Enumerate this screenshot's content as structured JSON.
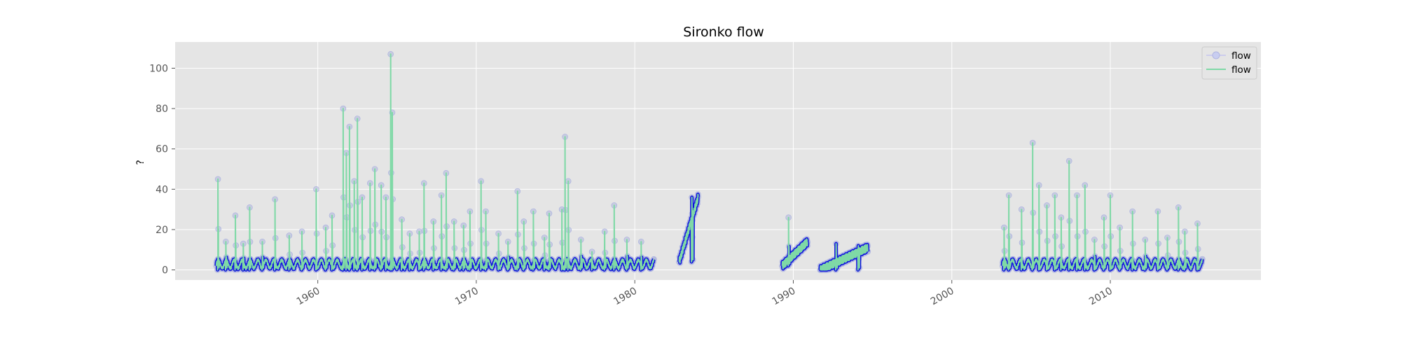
{
  "chart_data": {
    "type": "line",
    "title": "Sironko flow",
    "xlabel": "",
    "ylabel": "?",
    "x_range": [
      1951.0,
      2019.5
    ],
    "ylim": [
      -5,
      113
    ],
    "x_ticks": [
      1960,
      1970,
      1980,
      1990,
      2000,
      2010
    ],
    "x_tick_labels": [
      "1960",
      "1970",
      "1980",
      "1990",
      "2000",
      "2010"
    ],
    "y_ticks": [
      0,
      20,
      40,
      60,
      80,
      100
    ],
    "y_tick_labels": [
      "0",
      "20",
      "40",
      "60",
      "80",
      "100"
    ],
    "grid": true,
    "legend_position": "top-right",
    "background": "#e5e5e5",
    "series": [
      {
        "name": "flow",
        "style": "markers",
        "color": "#1010e0",
        "marker_color": "#aeb6dd"
      },
      {
        "name": "flow",
        "style": "line",
        "color": "#7fd9a6"
      }
    ],
    "segments": [
      {
        "start": 1953.6,
        "end": 1981.2,
        "baseline": [
          0,
          4
        ]
      },
      {
        "start": 1982.8,
        "end": 1984.0,
        "baseline": [
          4,
          36
        ]
      },
      {
        "start": 1989.3,
        "end": 1990.9,
        "baseline": [
          2,
          14
        ]
      },
      {
        "start": 1991.7,
        "end": 1994.7,
        "baseline": [
          0,
          11
        ]
      },
      {
        "start": 2003.2,
        "end": 2015.8,
        "baseline": [
          0,
          4
        ]
      }
    ],
    "peaks": [
      {
        "x": 1953.7,
        "y": 45
      },
      {
        "x": 1954.2,
        "y": 14
      },
      {
        "x": 1954.8,
        "y": 27
      },
      {
        "x": 1955.3,
        "y": 13
      },
      {
        "x": 1955.7,
        "y": 31
      },
      {
        "x": 1956.5,
        "y": 14
      },
      {
        "x": 1957.3,
        "y": 35
      },
      {
        "x": 1958.2,
        "y": 17
      },
      {
        "x": 1959.0,
        "y": 19
      },
      {
        "x": 1959.9,
        "y": 40
      },
      {
        "x": 1960.5,
        "y": 21
      },
      {
        "x": 1960.9,
        "y": 27
      },
      {
        "x": 1961.6,
        "y": 80
      },
      {
        "x": 1961.8,
        "y": 58
      },
      {
        "x": 1962.0,
        "y": 71
      },
      {
        "x": 1962.3,
        "y": 44
      },
      {
        "x": 1962.5,
        "y": 75
      },
      {
        "x": 1962.8,
        "y": 36
      },
      {
        "x": 1963.3,
        "y": 43
      },
      {
        "x": 1963.6,
        "y": 50
      },
      {
        "x": 1964.0,
        "y": 42
      },
      {
        "x": 1964.3,
        "y": 36
      },
      {
        "x": 1964.6,
        "y": 107
      },
      {
        "x": 1964.7,
        "y": 78
      },
      {
        "x": 1965.3,
        "y": 25
      },
      {
        "x": 1965.8,
        "y": 18
      },
      {
        "x": 1966.4,
        "y": 19
      },
      {
        "x": 1966.7,
        "y": 43
      },
      {
        "x": 1967.3,
        "y": 24
      },
      {
        "x": 1967.8,
        "y": 37
      },
      {
        "x": 1968.1,
        "y": 48
      },
      {
        "x": 1968.6,
        "y": 24
      },
      {
        "x": 1969.2,
        "y": 22
      },
      {
        "x": 1969.6,
        "y": 29
      },
      {
        "x": 1970.3,
        "y": 44
      },
      {
        "x": 1970.6,
        "y": 29
      },
      {
        "x": 1971.4,
        "y": 18
      },
      {
        "x": 1972.0,
        "y": 14
      },
      {
        "x": 1972.6,
        "y": 39
      },
      {
        "x": 1973.0,
        "y": 24
      },
      {
        "x": 1973.6,
        "y": 29
      },
      {
        "x": 1974.3,
        "y": 16
      },
      {
        "x": 1974.6,
        "y": 28
      },
      {
        "x": 1975.4,
        "y": 30
      },
      {
        "x": 1975.6,
        "y": 66
      },
      {
        "x": 1975.8,
        "y": 44
      },
      {
        "x": 1976.6,
        "y": 15
      },
      {
        "x": 1977.3,
        "y": 9
      },
      {
        "x": 1978.1,
        "y": 19
      },
      {
        "x": 1978.7,
        "y": 32
      },
      {
        "x": 1979.5,
        "y": 15
      },
      {
        "x": 1980.4,
        "y": 14
      },
      {
        "x": 1983.6,
        "y": 36
      },
      {
        "x": 1989.7,
        "y": 26
      },
      {
        "x": 1992.7,
        "y": 13
      },
      {
        "x": 1994.1,
        "y": 12
      },
      {
        "x": 2003.3,
        "y": 21
      },
      {
        "x": 2003.6,
        "y": 37
      },
      {
        "x": 2004.4,
        "y": 30
      },
      {
        "x": 2005.1,
        "y": 63
      },
      {
        "x": 2005.5,
        "y": 42
      },
      {
        "x": 2006.0,
        "y": 32
      },
      {
        "x": 2006.5,
        "y": 37
      },
      {
        "x": 2006.9,
        "y": 26
      },
      {
        "x": 2007.4,
        "y": 54
      },
      {
        "x": 2007.9,
        "y": 37
      },
      {
        "x": 2008.4,
        "y": 42
      },
      {
        "x": 2009.0,
        "y": 15
      },
      {
        "x": 2009.6,
        "y": 26
      },
      {
        "x": 2010.0,
        "y": 37
      },
      {
        "x": 2010.6,
        "y": 21
      },
      {
        "x": 2011.4,
        "y": 29
      },
      {
        "x": 2012.2,
        "y": 15
      },
      {
        "x": 2013.0,
        "y": 29
      },
      {
        "x": 2013.6,
        "y": 16
      },
      {
        "x": 2014.3,
        "y": 31
      },
      {
        "x": 2014.7,
        "y": 19
      },
      {
        "x": 2015.5,
        "y": 23
      }
    ]
  }
}
